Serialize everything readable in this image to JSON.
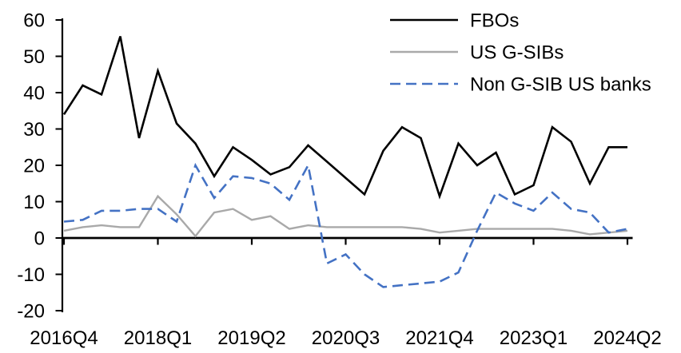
{
  "chart_data": {
    "type": "line",
    "title": "",
    "xlabel": "",
    "ylabel": "",
    "grid": false,
    "legend_position": "top-right",
    "ylim": [
      -20,
      60
    ],
    "y_ticks": [
      60,
      50,
      40,
      30,
      20,
      10,
      0,
      -10,
      -20
    ],
    "x_tick_labels": [
      "2016Q4",
      "2018Q1",
      "2019Q2",
      "2020Q3",
      "2021Q4",
      "2023Q1",
      "2024Q2"
    ],
    "x_tick_indices": [
      0,
      5,
      10,
      15,
      20,
      25,
      30
    ],
    "categories": [
      "2016Q4",
      "2017Q1",
      "2017Q2",
      "2017Q3",
      "2017Q4",
      "2018Q1",
      "2018Q2",
      "2018Q3",
      "2018Q4",
      "2019Q1",
      "2019Q2",
      "2019Q3",
      "2019Q4",
      "2020Q1",
      "2020Q2",
      "2020Q3",
      "2020Q4",
      "2021Q1",
      "2021Q2",
      "2021Q3",
      "2021Q4",
      "2022Q1",
      "2022Q2",
      "2022Q3",
      "2022Q4",
      "2023Q1",
      "2023Q2",
      "2023Q3",
      "2023Q4",
      "2024Q1",
      "2024Q2"
    ],
    "series": [
      {
        "name": "FBOs",
        "color": "#000000",
        "dash": "",
        "width": 2.6,
        "values": [
          34,
          42,
          39.5,
          55.5,
          27.5,
          46,
          31.5,
          26,
          17,
          25,
          21.5,
          17.5,
          19.5,
          25.5,
          21,
          16.5,
          12,
          24,
          30.5,
          27.5,
          11.5,
          26,
          20,
          23.5,
          12,
          14.5,
          30.5,
          26.5,
          15,
          25,
          25
        ]
      },
      {
        "name": "US G-SIBs",
        "color": "#a9a9a9",
        "dash": "",
        "width": 2.4,
        "values": [
          2,
          3,
          3.5,
          3,
          3,
          11.5,
          6.5,
          0.5,
          7,
          8,
          5,
          6,
          2.5,
          3.5,
          3,
          3,
          3,
          3,
          3,
          2.5,
          1.5,
          2,
          2.5,
          2.5,
          2.5,
          2.5,
          2.5,
          2,
          1,
          1.5,
          2
        ]
      },
      {
        "name": "Non G-SIB US banks",
        "color": "#4472c4",
        "dash": "13 7",
        "width": 2.6,
        "values": [
          4.5,
          5,
          7.5,
          7.5,
          8,
          8,
          4.5,
          20,
          11,
          17,
          16.5,
          15,
          10.5,
          20,
          -7,
          -4.5,
          -10,
          -13.5,
          -13,
          -12.5,
          -12,
          -9.5,
          2,
          12.5,
          9.5,
          7.5,
          12.5,
          8,
          7,
          1.5,
          2.5
        ]
      }
    ],
    "axis_color": "#000000",
    "tick_font_size": 24,
    "legend_font_size": 24
  }
}
